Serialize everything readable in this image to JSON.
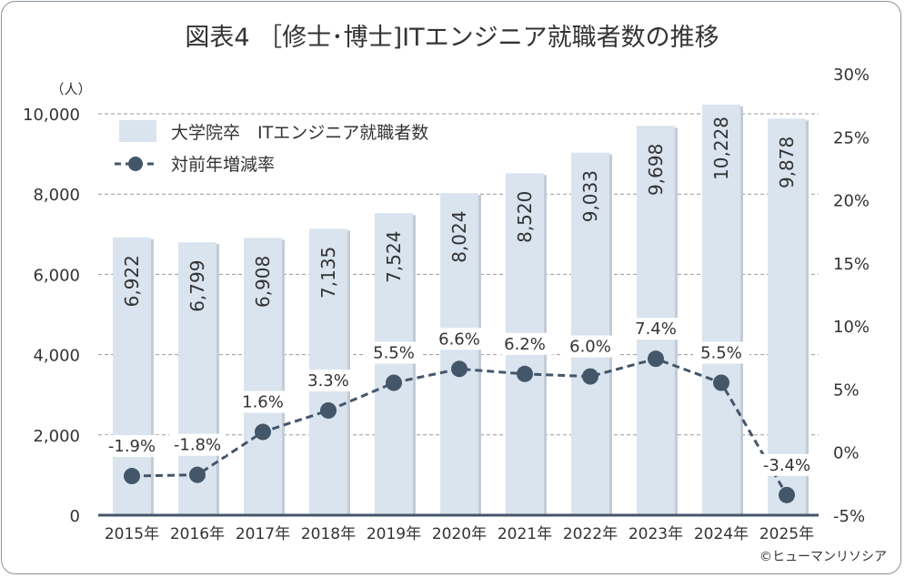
{
  "chart_data": {
    "type": "bar+line",
    "title": "図表4 ［修士･博士]ITエンジニア就職者数の推移",
    "categories": [
      "2015年",
      "2016年",
      "2017年",
      "2018年",
      "2019年",
      "2020年",
      "2021年",
      "2022年",
      "2023年",
      "2024年",
      "2025年"
    ],
    "series": [
      {
        "name": "大学院卒　ITエンジニア就職者数",
        "type": "bar",
        "axis": "left",
        "values": [
          6922,
          6799,
          6908,
          7135,
          7524,
          8024,
          8520,
          9033,
          9698,
          10228,
          9878
        ],
        "labels": [
          "6,922",
          "6,799",
          "6,908",
          "7,135",
          "7,524",
          "8,024",
          "8,520",
          "9,033",
          "9,698",
          "10,228",
          "9,878"
        ],
        "color": "#d9e4ef"
      },
      {
        "name": "対前年増減率",
        "type": "line",
        "axis": "right",
        "values": [
          -1.9,
          -1.8,
          1.6,
          3.3,
          5.5,
          6.6,
          6.2,
          6.0,
          7.4,
          5.5,
          -3.4
        ],
        "labels": [
          "-1.9%",
          "-1.8%",
          "1.6%",
          "3.3%",
          "5.5%",
          "6.6%",
          "6.2%",
          "6.0%",
          "7.4%",
          "5.5%",
          "-3.4%"
        ],
        "color": "#44566a",
        "negative_label_color": "#d0343a"
      }
    ],
    "left_axis": {
      "unit": "（人）",
      "ylim": [
        0,
        10000
      ],
      "ticks": [
        "0",
        "2,000",
        "4,000",
        "6,000",
        "8,000",
        "10,000"
      ]
    },
    "right_axis": {
      "ylim": [
        -5,
        30
      ],
      "ticks": [
        "-5%",
        "0%",
        "5%",
        "10%",
        "15%",
        "20%",
        "25%",
        "30%"
      ]
    },
    "grid": true,
    "legend": "top-left"
  },
  "credit": "©ヒューマンリソシア"
}
